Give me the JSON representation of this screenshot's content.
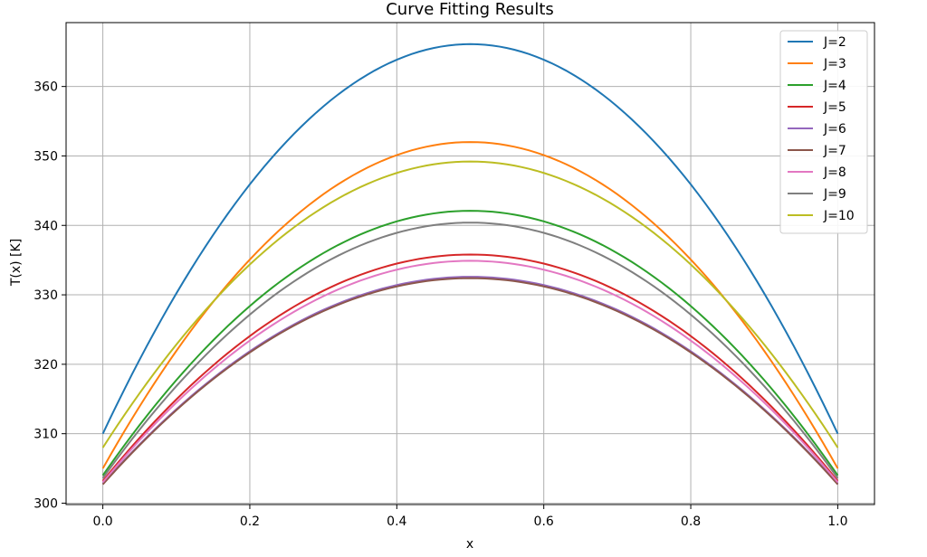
{
  "chart_data": {
    "type": "line",
    "title": "Curve Fitting Results",
    "xlabel": "x",
    "ylabel": "T(x) [K]",
    "xlim": [
      -0.05,
      1.05
    ],
    "ylim": [
      299.8,
      369.2
    ],
    "xticks": [
      0.0,
      0.2,
      0.4,
      0.6,
      0.8,
      1.0
    ],
    "xtick_labels": [
      "0.0",
      "0.2",
      "0.4",
      "0.6",
      "0.8",
      "1.0"
    ],
    "yticks": [
      300,
      310,
      320,
      330,
      340,
      350,
      360
    ],
    "ytick_labels": [
      "300",
      "310",
      "320",
      "330",
      "340",
      "350",
      "360"
    ],
    "grid": true,
    "legend_position": "top-right",
    "series": [
      {
        "name": "J=2",
        "color": "#1f77b4",
        "y_start": 310.0,
        "y_peak": 366.1,
        "y_end": 310.0
      },
      {
        "name": "J=3",
        "color": "#ff7f0e",
        "y_start": 305.0,
        "y_peak": 352.0,
        "y_end": 305.0
      },
      {
        "name": "J=4",
        "color": "#2ca02c",
        "y_start": 304.0,
        "y_peak": 342.1,
        "y_end": 304.0
      },
      {
        "name": "J=5",
        "color": "#d62728",
        "y_start": 303.2,
        "y_peak": 335.8,
        "y_end": 303.2
      },
      {
        "name": "J=6",
        "color": "#9467bd",
        "y_start": 302.8,
        "y_peak": 332.6,
        "y_end": 302.8
      },
      {
        "name": "J=7",
        "color": "#8c564b",
        "y_start": 302.7,
        "y_peak": 332.4,
        "y_end": 302.7
      },
      {
        "name": "J=8",
        "color": "#e377c2",
        "y_start": 303.0,
        "y_peak": 334.9,
        "y_end": 303.0
      },
      {
        "name": "J=9",
        "color": "#7f7f7f",
        "y_start": 303.6,
        "y_peak": 340.4,
        "y_end": 303.6
      },
      {
        "name": "J=10",
        "color": "#bcbd22",
        "y_start": 308.0,
        "y_peak": 349.2,
        "y_end": 308.0
      }
    ]
  }
}
